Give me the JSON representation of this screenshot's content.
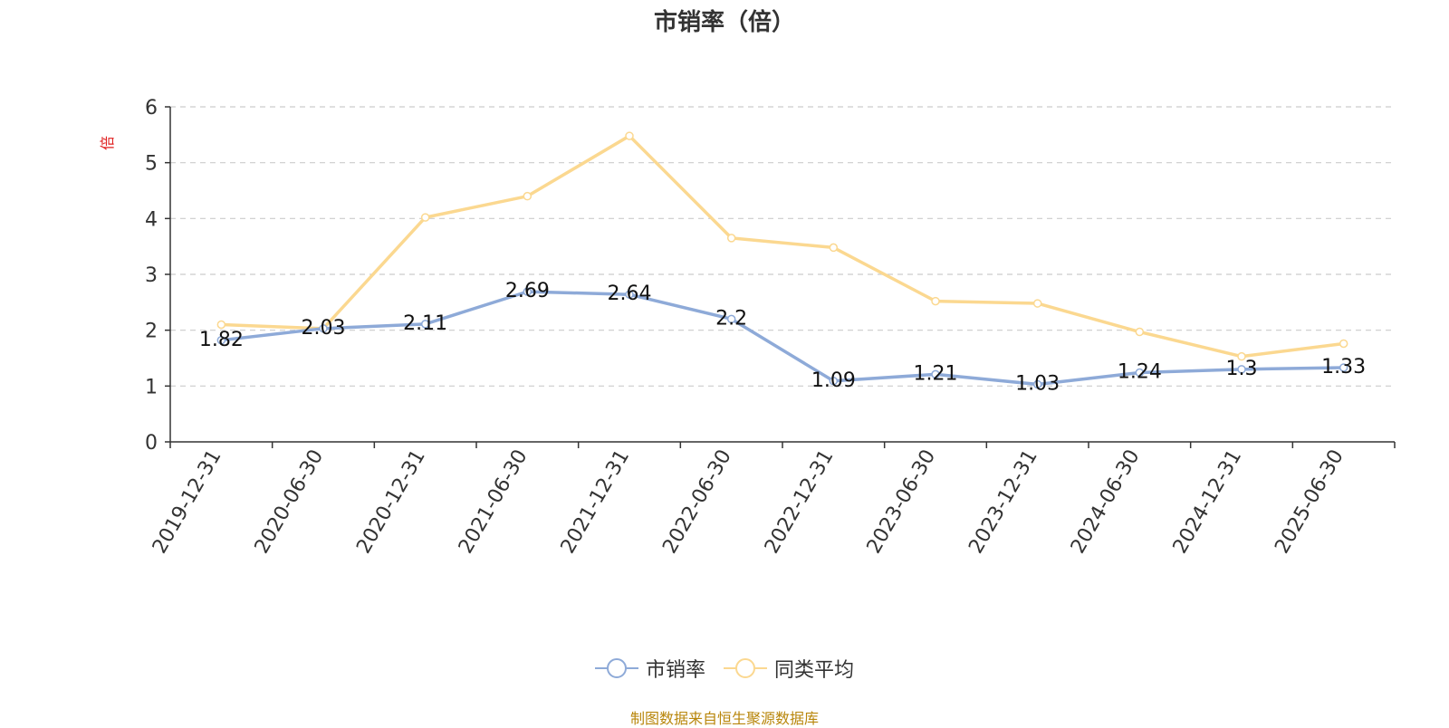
{
  "chart_data": {
    "type": "line",
    "title": "市销率（倍）",
    "ylabel": "倍",
    "xlabel": "",
    "ylim": [
      0,
      6
    ],
    "yticks": [
      0,
      1,
      2,
      3,
      4,
      5,
      6
    ],
    "grid": true,
    "legend_position": "bottom-center",
    "categories": [
      "2019-12-31",
      "2020-06-30",
      "2020-12-31",
      "2021-06-30",
      "2021-12-31",
      "2022-06-30",
      "2022-12-31",
      "2023-06-30",
      "2023-12-31",
      "2024-06-30",
      "2024-12-31",
      "2025-06-30"
    ],
    "series": [
      {
        "name": "市销率",
        "color": "#8eaad8",
        "values": [
          1.82,
          2.03,
          2.11,
          2.69,
          2.64,
          2.2,
          1.09,
          1.21,
          1.03,
          1.24,
          1.3,
          1.33
        ],
        "data_labels": [
          "1.82",
          "2.03",
          "2.11",
          "2.69",
          "2.64",
          "2.2",
          "1.09",
          "1.21",
          "1.03",
          "1.24",
          "1.3",
          "1.33"
        ]
      },
      {
        "name": "同类平均",
        "color": "#fbd890",
        "values": [
          2.1,
          2.03,
          4.02,
          4.4,
          5.48,
          3.65,
          3.48,
          2.52,
          2.48,
          1.97,
          1.53,
          1.76
        ]
      }
    ],
    "source_note": "制图数据来自恒生聚源数据库"
  }
}
